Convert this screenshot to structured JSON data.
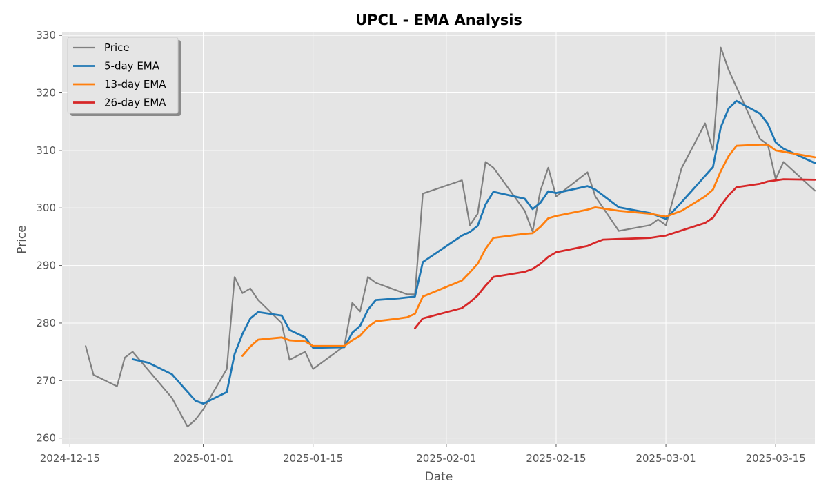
{
  "chart_data": {
    "type": "line",
    "title": "UPCL - EMA Analysis",
    "xlabel": "Date",
    "ylabel": "Price",
    "x_ticks": [
      "2024-12-15",
      "2025-01-01",
      "2025-01-15",
      "2025-02-01",
      "2025-02-15",
      "2025-03-01",
      "2025-03-15"
    ],
    "y_ticks": [
      260,
      270,
      280,
      290,
      300,
      310,
      320,
      330
    ],
    "xlim": [
      "2024-12-14",
      "2025-03-20"
    ],
    "ylim": [
      259,
      330.5
    ],
    "grid": true,
    "legend_position": "top-left",
    "colors": {
      "background": "#e5e5e5",
      "grid": "#ffffff"
    },
    "series": [
      {
        "name": "Price",
        "color": "#808080",
        "points": [
          [
            "2024-12-17",
            276
          ],
          [
            "2024-12-18",
            271
          ],
          [
            "2024-12-21",
            269
          ],
          [
            "2024-12-22",
            274
          ],
          [
            "2024-12-23",
            275
          ],
          [
            "2024-12-28",
            267
          ],
          [
            "2024-12-30",
            262
          ],
          [
            "2024-12-31",
            263.2
          ],
          [
            "2025-01-01",
            265
          ],
          [
            "2025-01-04",
            272
          ],
          [
            "2025-01-05",
            288
          ],
          [
            "2025-01-06",
            285.2
          ],
          [
            "2025-01-07",
            286
          ],
          [
            "2025-01-08",
            284
          ],
          [
            "2025-01-11",
            280
          ],
          [
            "2025-01-12",
            273.6
          ],
          [
            "2025-01-14",
            275
          ],
          [
            "2025-01-15",
            272
          ],
          [
            "2025-01-19",
            276
          ],
          [
            "2025-01-20",
            283.5
          ],
          [
            "2025-01-21",
            282
          ],
          [
            "2025-01-22",
            288
          ],
          [
            "2025-01-23",
            287
          ],
          [
            "2025-01-27",
            285
          ],
          [
            "2025-01-28",
            285
          ],
          [
            "2025-01-29",
            302.5
          ],
          [
            "2025-02-03",
            304.8
          ],
          [
            "2025-02-04",
            297
          ],
          [
            "2025-02-05",
            299
          ],
          [
            "2025-02-06",
            308
          ],
          [
            "2025-02-07",
            307
          ],
          [
            "2025-02-11",
            299.5
          ],
          [
            "2025-02-12",
            295.9
          ],
          [
            "2025-02-13",
            303
          ],
          [
            "2025-02-14",
            307
          ],
          [
            "2025-02-15",
            302
          ],
          [
            "2025-02-19",
            306.2
          ],
          [
            "2025-02-20",
            302
          ],
          [
            "2025-02-23",
            296
          ],
          [
            "2025-02-27",
            297
          ],
          [
            "2025-02-28",
            298
          ],
          [
            "2025-03-01",
            297
          ],
          [
            "2025-03-03",
            306.9
          ],
          [
            "2025-03-06",
            314.7
          ],
          [
            "2025-03-07",
            310
          ],
          [
            "2025-03-08",
            327.9
          ],
          [
            "2025-03-09",
            324
          ],
          [
            "2025-03-13",
            312
          ],
          [
            "2025-03-14",
            311
          ],
          [
            "2025-03-15",
            305
          ],
          [
            "2025-03-16",
            308
          ],
          [
            "2025-03-20",
            303
          ]
        ]
      },
      {
        "name": "5-day EMA",
        "color": "#1f77b4",
        "points": [
          [
            "2024-12-23",
            273.7
          ],
          [
            "2024-12-25",
            273.1
          ],
          [
            "2024-12-28",
            271.1
          ],
          [
            "2024-12-31",
            266.5
          ],
          [
            "2025-01-01",
            266
          ],
          [
            "2025-01-04",
            268
          ],
          [
            "2025-01-05",
            274.6
          ],
          [
            "2025-01-06",
            278.1
          ],
          [
            "2025-01-07",
            280.8
          ],
          [
            "2025-01-08",
            281.9
          ],
          [
            "2025-01-11",
            281.3
          ],
          [
            "2025-01-12",
            278.8
          ],
          [
            "2025-01-14",
            277.5
          ],
          [
            "2025-01-15",
            275.7
          ],
          [
            "2025-01-19",
            275.8
          ],
          [
            "2025-01-20",
            278.3
          ],
          [
            "2025-01-21",
            279.5
          ],
          [
            "2025-01-22",
            282.3
          ],
          [
            "2025-01-23",
            284
          ],
          [
            "2025-01-26",
            284.3
          ],
          [
            "2025-01-28",
            284.6
          ],
          [
            "2025-01-29",
            290.6
          ],
          [
            "2025-02-03",
            295.2
          ],
          [
            "2025-02-04",
            295.8
          ],
          [
            "2025-02-05",
            296.9
          ],
          [
            "2025-02-06",
            300.6
          ],
          [
            "2025-02-07",
            302.8
          ],
          [
            "2025-02-11",
            301.6
          ],
          [
            "2025-02-12",
            299.8
          ],
          [
            "2025-02-13",
            300.9
          ],
          [
            "2025-02-14",
            302.9
          ],
          [
            "2025-02-15",
            302.6
          ],
          [
            "2025-02-19",
            303.8
          ],
          [
            "2025-02-20",
            303.2
          ],
          [
            "2025-02-23",
            300.1
          ],
          [
            "2025-02-27",
            299.1
          ],
          [
            "2025-03-01",
            298.1
          ],
          [
            "2025-03-03",
            301
          ],
          [
            "2025-03-07",
            307.1
          ],
          [
            "2025-03-08",
            314
          ],
          [
            "2025-03-09",
            317.3
          ],
          [
            "2025-03-10",
            318.6
          ],
          [
            "2025-03-13",
            316.4
          ],
          [
            "2025-03-14",
            314.6
          ],
          [
            "2025-03-15",
            311.4
          ],
          [
            "2025-03-16",
            310.3
          ],
          [
            "2025-03-20",
            307.8
          ]
        ]
      },
      {
        "name": "13-day EMA",
        "color": "#ff7f0e",
        "points": [
          [
            "2025-01-06",
            274.3
          ],
          [
            "2025-01-07",
            275.9
          ],
          [
            "2025-01-08",
            277.1
          ],
          [
            "2025-01-11",
            277.5
          ],
          [
            "2025-01-12",
            277
          ],
          [
            "2025-01-14",
            276.8
          ],
          [
            "2025-01-15",
            276
          ],
          [
            "2025-01-19",
            276
          ],
          [
            "2025-01-20",
            277
          ],
          [
            "2025-01-21",
            277.8
          ],
          [
            "2025-01-22",
            279.3
          ],
          [
            "2025-01-23",
            280.3
          ],
          [
            "2025-01-26",
            280.8
          ],
          [
            "2025-01-27",
            281
          ],
          [
            "2025-01-28",
            281.6
          ],
          [
            "2025-01-29",
            284.6
          ],
          [
            "2025-02-03",
            287.4
          ],
          [
            "2025-02-04",
            288.8
          ],
          [
            "2025-02-05",
            290.3
          ],
          [
            "2025-02-06",
            292.9
          ],
          [
            "2025-02-07",
            294.8
          ],
          [
            "2025-02-11",
            295.5
          ],
          [
            "2025-02-12",
            295.6
          ],
          [
            "2025-02-13",
            296.7
          ],
          [
            "2025-02-14",
            298.2
          ],
          [
            "2025-02-15",
            298.6
          ],
          [
            "2025-02-19",
            299.7
          ],
          [
            "2025-02-20",
            300.1
          ],
          [
            "2025-02-23",
            299.5
          ],
          [
            "2025-02-27",
            299
          ],
          [
            "2025-03-01",
            298.5
          ],
          [
            "2025-03-03",
            299.5
          ],
          [
            "2025-03-06",
            302
          ],
          [
            "2025-03-07",
            303.2
          ],
          [
            "2025-03-08",
            306.4
          ],
          [
            "2025-03-09",
            309
          ],
          [
            "2025-03-10",
            310.8
          ],
          [
            "2025-03-13",
            311
          ],
          [
            "2025-03-14",
            311
          ],
          [
            "2025-03-15",
            310
          ],
          [
            "2025-03-20",
            308.8
          ]
        ]
      },
      {
        "name": "26-day EMA",
        "color": "#d62728",
        "points": [
          [
            "2025-01-28",
            279.1
          ],
          [
            "2025-01-29",
            280.8
          ],
          [
            "2025-02-03",
            282.6
          ],
          [
            "2025-02-04",
            283.6
          ],
          [
            "2025-02-05",
            284.8
          ],
          [
            "2025-02-06",
            286.5
          ],
          [
            "2025-02-07",
            288
          ],
          [
            "2025-02-11",
            288.9
          ],
          [
            "2025-02-12",
            289.4
          ],
          [
            "2025-02-13",
            290.3
          ],
          [
            "2025-02-14",
            291.5
          ],
          [
            "2025-02-15",
            292.3
          ],
          [
            "2025-02-19",
            293.4
          ],
          [
            "2025-02-20",
            294
          ],
          [
            "2025-02-21",
            294.5
          ],
          [
            "2025-02-27",
            294.8
          ],
          [
            "2025-02-28",
            295
          ],
          [
            "2025-03-01",
            295.2
          ],
          [
            "2025-03-06",
            297.4
          ],
          [
            "2025-03-07",
            298.3
          ],
          [
            "2025-03-08",
            300.4
          ],
          [
            "2025-03-09",
            302.2
          ],
          [
            "2025-03-10",
            303.6
          ],
          [
            "2025-03-13",
            304.2
          ],
          [
            "2025-03-14",
            304.6
          ],
          [
            "2025-03-15",
            304.8
          ],
          [
            "2025-03-16",
            305
          ],
          [
            "2025-03-20",
            304.9
          ]
        ]
      }
    ]
  }
}
